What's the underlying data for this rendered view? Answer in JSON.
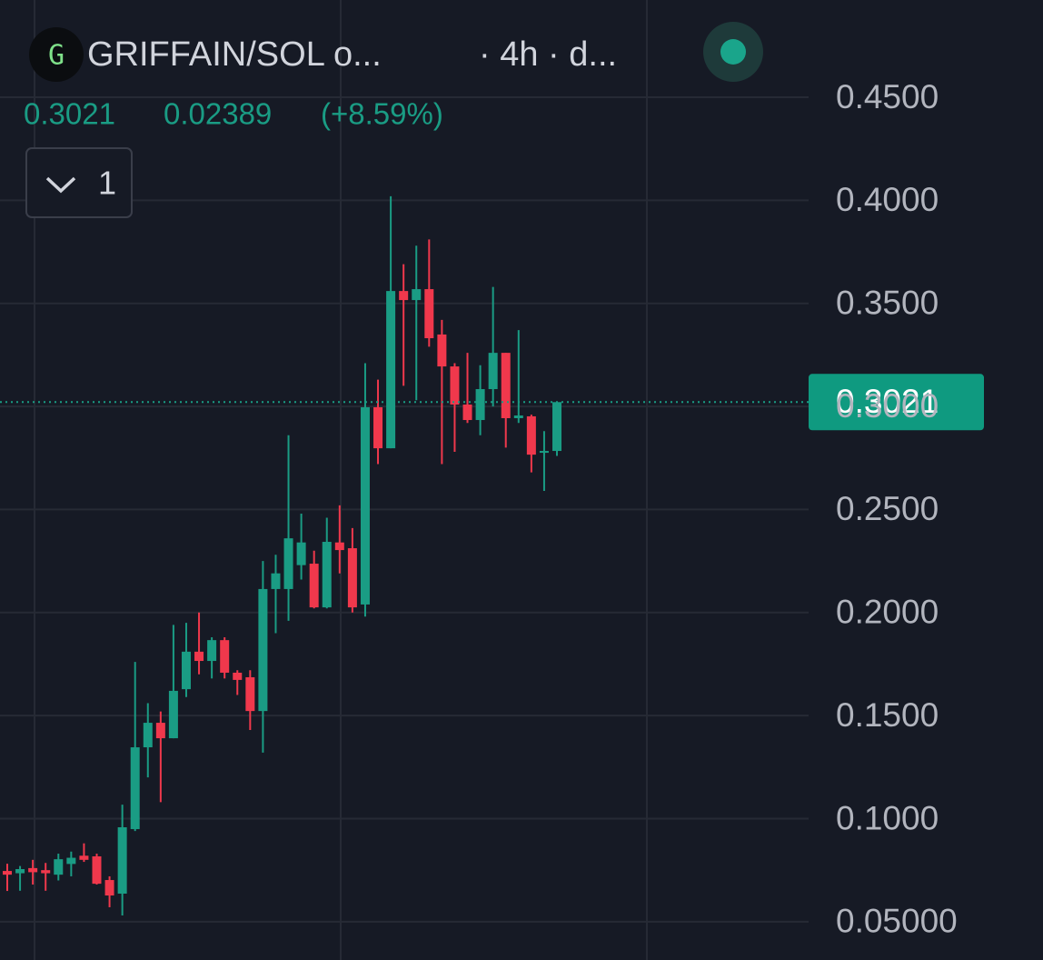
{
  "chart_data": {
    "type": "candlestick",
    "title": "GRIFFAIN/SOL o...",
    "interval": "· 4h · d...",
    "logo_letter": "G",
    "indicator_count": 1,
    "last_price": 0.3021,
    "change": 0.02389,
    "change_label": "(+8.59%)",
    "up_color": "#1a9c84",
    "down_color": "#f0384c",
    "open": [
      0.0746,
      0.0735,
      0.076,
      0.075,
      0.0728,
      0.078,
      0.082,
      0.0817,
      0.0702,
      0.0636,
      0.0949,
      0.1346,
      0.1465,
      0.139,
      0.1628,
      0.181,
      0.1765,
      0.1866,
      0.1708,
      0.1686,
      0.1522,
      0.2114,
      0.2114,
      0.223,
      0.2237,
      0.2025,
      0.234,
      0.2312,
      0.2039,
      0.2996,
      0.2797,
      0.356,
      0.3516,
      0.3569,
      0.3349,
      0.3194,
      0.3009,
      0.2934,
      0.3084,
      0.326,
      0.2943,
      0.2952,
      0.2775,
      0.2784
    ],
    "high": [
      0.0781,
      0.077,
      0.08,
      0.0785,
      0.083,
      0.084,
      0.088,
      0.083,
      0.072,
      0.1068,
      0.176,
      0.156,
      0.152,
      0.194,
      0.195,
      0.2,
      0.188,
      0.188,
      0.172,
      0.172,
      0.225,
      0.228,
      0.286,
      0.248,
      0.23,
      0.246,
      0.252,
      0.241,
      0.321,
      0.313,
      0.402,
      0.369,
      0.378,
      0.381,
      0.342,
      0.321,
      0.326,
      0.32,
      0.358,
      0.326,
      0.337,
      0.296,
      0.288,
      0.3021
    ],
    "low": [
      0.0649,
      0.065,
      0.068,
      0.065,
      0.07,
      0.072,
      0.079,
      0.068,
      0.057,
      0.053,
      0.094,
      0.12,
      0.108,
      0.139,
      0.159,
      0.17,
      0.168,
      0.168,
      0.16,
      0.143,
      0.132,
      0.19,
      0.196,
      0.216,
      0.202,
      0.202,
      0.219,
      0.2,
      0.198,
      0.272,
      0.2797,
      0.31,
      0.303,
      0.329,
      0.272,
      0.278,
      0.292,
      0.286,
      0.3,
      0.28,
      0.292,
      0.268,
      0.259,
      0.276
    ],
    "close": [
      0.0728,
      0.0755,
      0.074,
      0.0735,
      0.0803,
      0.081,
      0.08,
      0.0684,
      0.0627,
      0.0958,
      0.1346,
      0.1465,
      0.139,
      0.162,
      0.181,
      0.1765,
      0.1866,
      0.1708,
      0.1673,
      0.1522,
      0.2114,
      0.219,
      0.236,
      0.234,
      0.2025,
      0.2343,
      0.2303,
      0.2025,
      0.2996,
      0.2797,
      0.356,
      0.3516,
      0.3569,
      0.3331,
      0.3194,
      0.3009,
      0.2934,
      0.3084,
      0.326,
      0.2943,
      0.2956,
      0.2766,
      0.2784,
      0.3021
    ],
    "ylim": [
      0.0314,
      0.4972
    ],
    "yticks": [
      {
        "value": 0.45,
        "label": "0.4500"
      },
      {
        "value": 0.4,
        "label": "0.4000"
      },
      {
        "value": 0.35,
        "label": "0.3500"
      },
      {
        "value": 0.3,
        "label": "0.3000"
      },
      {
        "value": 0.25,
        "label": "0.2500"
      },
      {
        "value": 0.2,
        "label": "0.2000"
      },
      {
        "value": 0.15,
        "label": "0.1500"
      },
      {
        "value": 0.1,
        "label": "0.1000"
      },
      {
        "value": 0.05,
        "label": "0.05000"
      }
    ],
    "grid": true
  }
}
